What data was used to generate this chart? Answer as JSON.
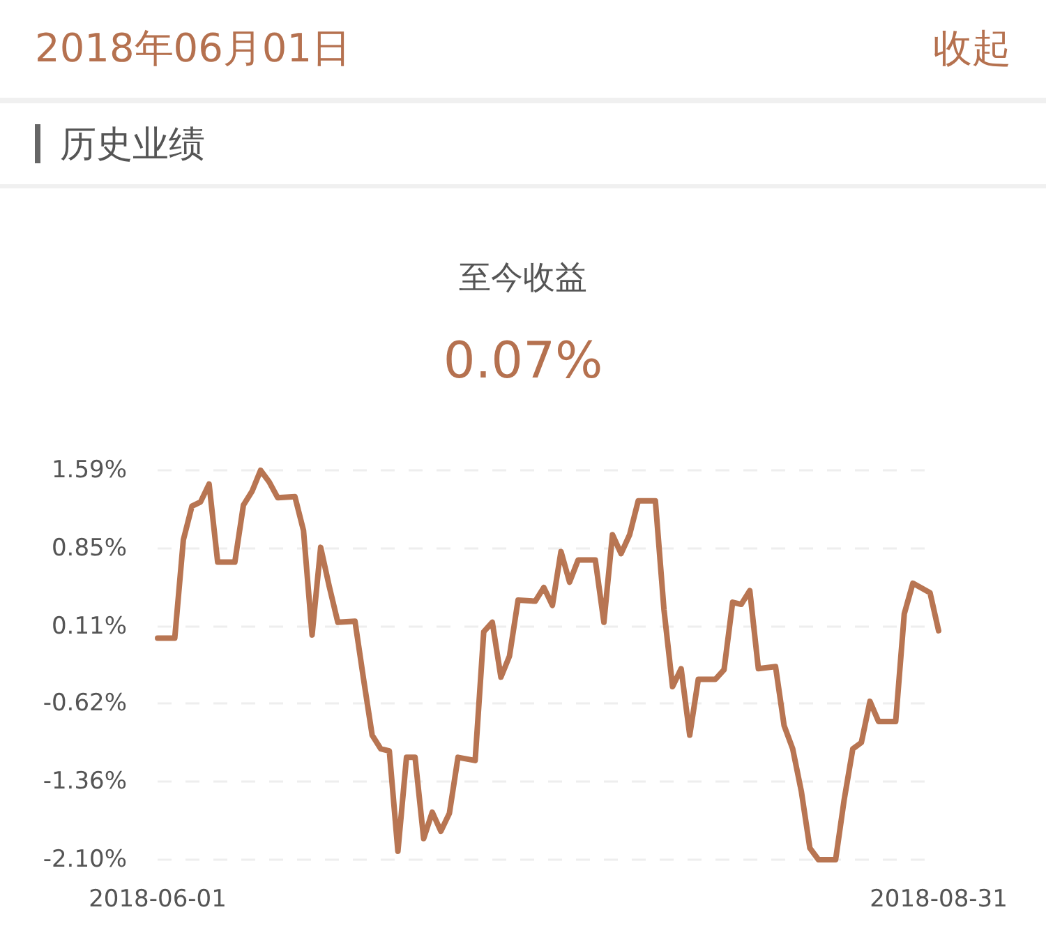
{
  "chart_data": {
    "type": "line",
    "title": "至今收益",
    "subtitle": "0.07%",
    "annotations": [
      "2018年06月01日",
      "收起",
      "历史业绩"
    ],
    "x": [
      "2018-06-01",
      "2018-06-03",
      "2018-06-04",
      "2018-06-05",
      "2018-06-06",
      "2018-06-07",
      "2018-06-08",
      "2018-06-10",
      "2018-06-11",
      "2018-06-12",
      "2018-06-13",
      "2018-06-14",
      "2018-06-15",
      "2018-06-17",
      "2018-06-18",
      "2018-06-19",
      "2018-06-20",
      "2018-06-21",
      "2018-06-22",
      "2018-06-24",
      "2018-06-25",
      "2018-06-26",
      "2018-06-27",
      "2018-06-28",
      "2018-06-29",
      "2018-06-30",
      "2018-07-01",
      "2018-07-02",
      "2018-07-03",
      "2018-07-04",
      "2018-07-05",
      "2018-07-06",
      "2018-07-08",
      "2018-07-09",
      "2018-07-10",
      "2018-07-11",
      "2018-07-12",
      "2018-07-13",
      "2018-07-15",
      "2018-07-16",
      "2018-07-17",
      "2018-07-18",
      "2018-07-19",
      "2018-07-20",
      "2018-07-22",
      "2018-07-23",
      "2018-07-24",
      "2018-07-25",
      "2018-07-26",
      "2018-07-27",
      "2018-07-29",
      "2018-07-30",
      "2018-07-31",
      "2018-08-01",
      "2018-08-02",
      "2018-08-03",
      "2018-08-05",
      "2018-08-06",
      "2018-08-07",
      "2018-08-08",
      "2018-08-09",
      "2018-08-10",
      "2018-08-12",
      "2018-08-13",
      "2018-08-14",
      "2018-08-15",
      "2018-08-16",
      "2018-08-17",
      "2018-08-19",
      "2018-08-20",
      "2018-08-21",
      "2018-08-22",
      "2018-08-23",
      "2018-08-24",
      "2018-08-26",
      "2018-08-27",
      "2018-08-28",
      "2018-08-30",
      "2018-08-31"
    ],
    "series": [
      {
        "color": "#b87552",
        "values": [
          0.0,
          0.0,
          0.93,
          1.25,
          1.29,
          1.46,
          0.72,
          0.72,
          1.26,
          1.39,
          1.59,
          1.48,
          1.33,
          1.34,
          1.02,
          0.03,
          0.86,
          0.49,
          0.15,
          0.16,
          -0.39,
          -0.92,
          -1.05,
          -1.07,
          -2.02,
          -1.13,
          -1.13,
          -1.9,
          -1.65,
          -1.83,
          -1.66,
          -1.13,
          -1.16,
          0.06,
          0.15,
          -0.37,
          -0.17,
          0.36,
          0.35,
          0.48,
          0.31,
          0.82,
          0.53,
          0.74,
          0.74,
          0.15,
          0.98,
          0.8,
          0.98,
          1.3,
          1.3,
          0.27,
          -0.46,
          -0.29,
          -0.92,
          -0.39,
          -0.39,
          -0.3,
          0.34,
          0.32,
          0.45,
          -0.29,
          -0.27,
          -0.83,
          -1.05,
          -1.45,
          -1.99,
          -2.1,
          -2.1,
          -1.53,
          -1.05,
          -0.99,
          -0.6,
          -0.79,
          -0.79,
          0.23,
          0.52,
          0.43,
          0.07
        ]
      }
    ],
    "xlim": [
      "2018-06-01",
      "2018-08-31"
    ],
    "xticks": [
      "2018-06-01",
      "2018-08-31"
    ],
    "ylim": [
      -2.1,
      1.59
    ],
    "yticks": [
      {
        "value": -2.1,
        "label": "-2.10%"
      },
      {
        "value": -1.36,
        "label": "-1.36%"
      },
      {
        "value": -0.62,
        "label": "-0.62%"
      },
      {
        "value": 0.11,
        "label": "0.11%"
      },
      {
        "value": 0.85,
        "label": "0.85%"
      },
      {
        "value": 1.59,
        "label": "1.59%"
      }
    ],
    "grid": "y",
    "marker": "none",
    "line_style": "solid"
  }
}
